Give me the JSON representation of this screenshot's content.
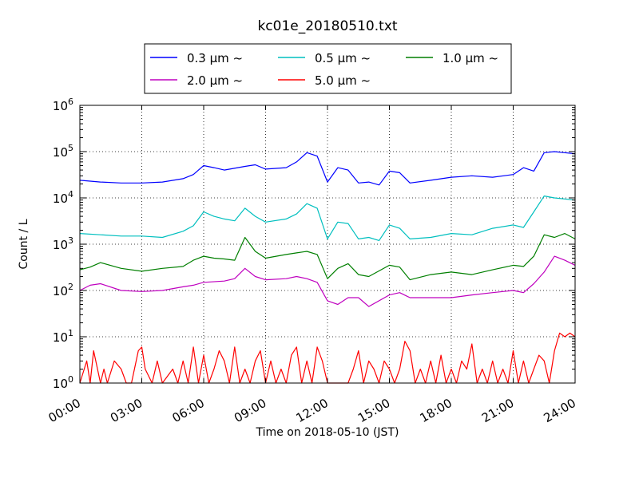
{
  "chart_data": {
    "type": "line",
    "title": "kc01e_20180510.txt",
    "xlabel": "Time on 2018-05-10 (JST)",
    "ylabel": "Count / L",
    "y_scale": "log",
    "ylim": [
      1,
      1000000
    ],
    "xlim": [
      "00:00",
      "24:00"
    ],
    "x_ticks": [
      "00:00",
      "03:00",
      "06:00",
      "09:00",
      "12:00",
      "15:00",
      "18:00",
      "21:00",
      "24:00"
    ],
    "y_ticks": [
      {
        "base": "10",
        "exp": "0"
      },
      {
        "base": "10",
        "exp": "1"
      },
      {
        "base": "10",
        "exp": "2"
      },
      {
        "base": "10",
        "exp": "3"
      },
      {
        "base": "10",
        "exp": "4"
      },
      {
        "base": "10",
        "exp": "5"
      },
      {
        "base": "10",
        "exp": "6"
      }
    ],
    "grid": true,
    "legend_position": "top",
    "series": [
      {
        "name": "0.3 μm ~",
        "color": "#0000ff",
        "x": [
          "00:00",
          "01:00",
          "02:00",
          "03:00",
          "04:00",
          "05:00",
          "05:30",
          "06:00",
          "06:30",
          "07:00",
          "08:00",
          "08:30",
          "09:00",
          "10:00",
          "10:30",
          "11:00",
          "11:30",
          "12:00",
          "12:30",
          "13:00",
          "13:30",
          "14:00",
          "14:30",
          "15:00",
          "15:30",
          "16:00",
          "17:00",
          "18:00",
          "19:00",
          "20:00",
          "21:00",
          "21:30",
          "22:00",
          "22:30",
          "23:00",
          "24:00"
        ],
        "y": [
          24000,
          22000,
          21000,
          21000,
          22000,
          26000,
          32000,
          50000,
          45000,
          40000,
          48000,
          52000,
          42000,
          45000,
          60000,
          95000,
          80000,
          22000,
          45000,
          40000,
          21000,
          22000,
          19000,
          38000,
          35000,
          21000,
          24000,
          28000,
          30000,
          28000,
          32000,
          45000,
          38000,
          95000,
          100000,
          90000
        ]
      },
      {
        "name": "0.5 μm ~",
        "color": "#00bfbf",
        "x": [
          "00:00",
          "01:00",
          "02:00",
          "03:00",
          "04:00",
          "05:00",
          "05:30",
          "06:00",
          "06:30",
          "07:00",
          "07:30",
          "08:00",
          "08:30",
          "09:00",
          "10:00",
          "10:30",
          "11:00",
          "11:30",
          "12:00",
          "12:30",
          "13:00",
          "13:30",
          "14:00",
          "14:30",
          "15:00",
          "15:30",
          "16:00",
          "17:00",
          "18:00",
          "19:00",
          "20:00",
          "21:00",
          "21:30",
          "22:00",
          "22:30",
          "23:00",
          "24:00"
        ],
        "y": [
          1700,
          1600,
          1500,
          1500,
          1400,
          1900,
          2500,
          5000,
          4000,
          3500,
          3200,
          6000,
          4000,
          3000,
          3500,
          4500,
          7500,
          6000,
          1300,
          3000,
          2800,
          1300,
          1400,
          1200,
          2600,
          2200,
          1300,
          1400,
          1700,
          1600,
          2200,
          2600,
          2300,
          5000,
          11000,
          10000,
          9000
        ]
      },
      {
        "name": "1.0 μm ~",
        "color": "#007f00",
        "x": [
          "00:00",
          "00:30",
          "01:00",
          "02:00",
          "03:00",
          "04:00",
          "05:00",
          "05:30",
          "06:00",
          "06:30",
          "07:00",
          "07:30",
          "08:00",
          "08:30",
          "09:00",
          "10:00",
          "10:30",
          "11:00",
          "11:30",
          "12:00",
          "12:30",
          "13:00",
          "13:30",
          "14:00",
          "15:00",
          "15:30",
          "16:00",
          "17:00",
          "18:00",
          "19:00",
          "20:00",
          "21:00",
          "21:30",
          "22:00",
          "22:30",
          "23:00",
          "23:30",
          "24:00"
        ],
        "y": [
          280,
          320,
          400,
          300,
          260,
          300,
          330,
          450,
          550,
          500,
          480,
          450,
          1400,
          700,
          500,
          600,
          650,
          700,
          600,
          180,
          300,
          380,
          220,
          200,
          350,
          320,
          170,
          220,
          250,
          220,
          280,
          350,
          330,
          550,
          1600,
          1400,
          1700,
          1300
        ]
      },
      {
        "name": "2.0 μm ~",
        "color": "#bf00bf",
        "x": [
          "00:00",
          "00:30",
          "01:00",
          "02:00",
          "03:00",
          "04:00",
          "05:00",
          "05:30",
          "06:00",
          "07:00",
          "07:30",
          "08:00",
          "08:30",
          "09:00",
          "10:00",
          "10:30",
          "11:00",
          "11:30",
          "12:00",
          "12:30",
          "13:00",
          "13:30",
          "14:00",
          "15:00",
          "15:30",
          "16:00",
          "17:00",
          "18:00",
          "19:00",
          "20:00",
          "21:00",
          "21:30",
          "22:00",
          "22:30",
          "23:00",
          "23:30",
          "24:00"
        ],
        "y": [
          100,
          130,
          140,
          100,
          95,
          100,
          120,
          130,
          150,
          160,
          180,
          300,
          200,
          170,
          180,
          200,
          180,
          150,
          60,
          50,
          70,
          70,
          45,
          80,
          90,
          70,
          70,
          70,
          80,
          90,
          100,
          90,
          140,
          250,
          550,
          450,
          350
        ]
      },
      {
        "name": "5.0 μm ~",
        "color": "#ff0000",
        "x": [
          "00:00",
          "00:20",
          "00:30",
          "00:40",
          "01:00",
          "01:10",
          "01:20",
          "01:40",
          "02:00",
          "02:15",
          "02:30",
          "02:50",
          "03:00",
          "03:10",
          "03:30",
          "03:45",
          "04:00",
          "04:30",
          "04:45",
          "05:00",
          "05:15",
          "05:30",
          "05:45",
          "06:00",
          "06:15",
          "06:30",
          "06:45",
          "07:00",
          "07:15",
          "07:30",
          "07:45",
          "08:00",
          "08:15",
          "08:30",
          "08:45",
          "09:00",
          "09:15",
          "09:30",
          "09:45",
          "10:00",
          "10:15",
          "10:30",
          "10:45",
          "11:00",
          "11:15",
          "11:30",
          "11:45",
          "12:00",
          "12:15",
          "13:00",
          "13:15",
          "13:30",
          "13:45",
          "14:00",
          "14:15",
          "14:30",
          "14:45",
          "15:00",
          "15:15",
          "15:30",
          "15:45",
          "16:00",
          "16:15",
          "16:30",
          "16:45",
          "17:00",
          "17:15",
          "17:30",
          "17:45",
          "18:00",
          "18:15",
          "18:30",
          "18:45",
          "19:00",
          "19:15",
          "19:30",
          "19:45",
          "20:00",
          "20:15",
          "20:30",
          "20:45",
          "21:00",
          "21:15",
          "21:30",
          "21:45",
          "22:00",
          "22:15",
          "22:30",
          "22:45",
          "23:00",
          "23:15",
          "23:30",
          "23:45",
          "24:00"
        ],
        "y": [
          1,
          3,
          1,
          5,
          1,
          2,
          1,
          3,
          2,
          1,
          1,
          5,
          6,
          2,
          1,
          3,
          1,
          2,
          1,
          3,
          1,
          6,
          1,
          4,
          1,
          2,
          5,
          3,
          1,
          6,
          1,
          2,
          1,
          3,
          5,
          1,
          3,
          1,
          2,
          1,
          4,
          6,
          1,
          3,
          1,
          6,
          3,
          1,
          1,
          1,
          2,
          5,
          1,
          3,
          2,
          1,
          3,
          2,
          1,
          2,
          8,
          5,
          1,
          2,
          1,
          3,
          1,
          4,
          1,
          2,
          1,
          3,
          2,
          7,
          1,
          2,
          1,
          3,
          1,
          2,
          1,
          5,
          1,
          3,
          1,
          2,
          4,
          3,
          1,
          5,
          12,
          10,
          12,
          10
        ]
      }
    ]
  }
}
